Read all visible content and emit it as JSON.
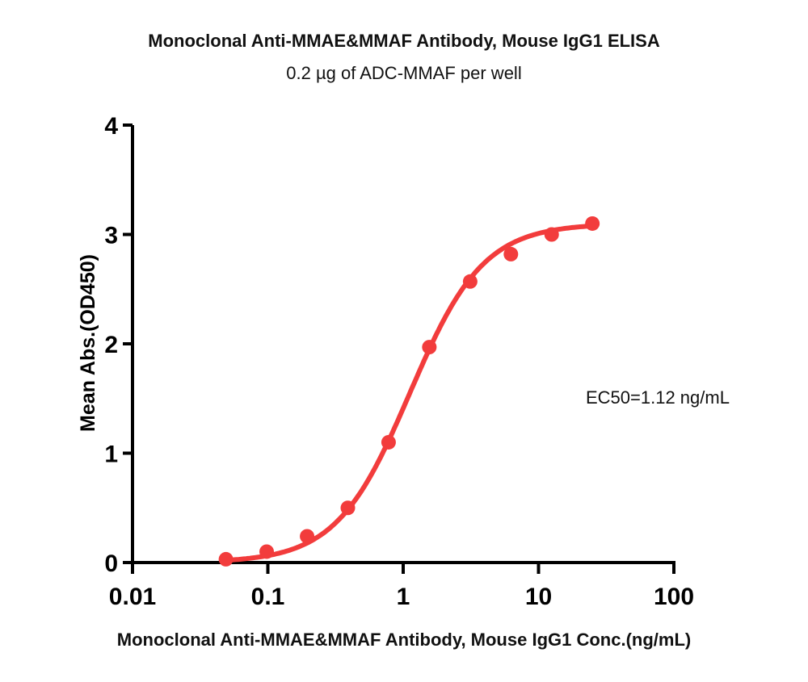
{
  "chart_data": {
    "type": "scatter",
    "title": "Monoclonal Anti-MMAE&MMAF Antibody, Mouse IgG1 ELISA",
    "subtitle": "0.2 µg of  ADC-MMAF per well",
    "xlabel": "Monoclonal Anti-MMAE&MMAF Antibody, Mouse IgG1 Conc.(ng/mL)",
    "ylabel": "Mean Abs.(OD450)",
    "xscale": "log",
    "xlim": [
      0.01,
      100
    ],
    "ylim": [
      0,
      4
    ],
    "x_ticks": [
      0.01,
      0.1,
      1,
      10,
      100
    ],
    "x_tick_labels": [
      "0.01",
      "0.1",
      "1",
      "10",
      "100"
    ],
    "y_ticks": [
      0,
      1,
      2,
      3,
      4
    ],
    "y_tick_labels": [
      "0",
      "1",
      "2",
      "3",
      "4"
    ],
    "grid": false,
    "series": [
      {
        "name": "Mouse IgG1",
        "color": "#f23c3c",
        "x": [
          0.049,
          0.098,
          0.195,
          0.39,
          0.78,
          1.56,
          3.125,
          6.25,
          12.5,
          25
        ],
        "y": [
          0.03,
          0.1,
          0.24,
          0.5,
          1.1,
          1.97,
          2.57,
          2.82,
          3.0,
          3.1
        ],
        "fit": {
          "model": "4PL",
          "bottom": 0.0,
          "top": 3.1,
          "ec50": 1.12,
          "hill": 1.6
        }
      }
    ],
    "annotations": [
      {
        "text": "EC50=1.12 ng/mL"
      }
    ]
  }
}
